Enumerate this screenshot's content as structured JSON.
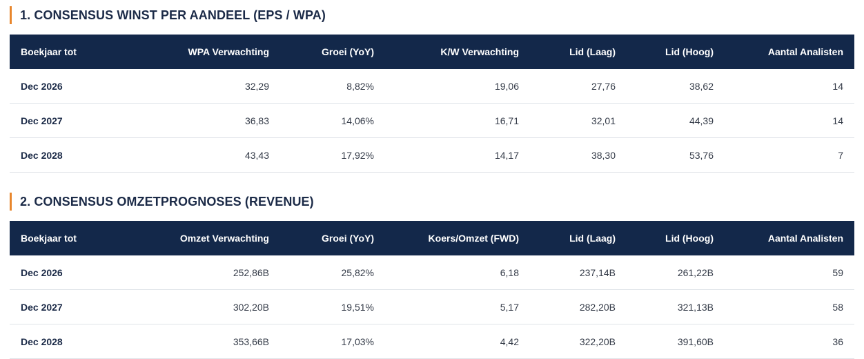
{
  "eps": {
    "title": "1. CONSENSUS WINST PER AANDEEL (EPS / WPA)",
    "headers": [
      "Boekjaar tot",
      "WPA Verwachting",
      "Groei (YoY)",
      "K/W Verwachting",
      "Lid (Laag)",
      "Lid (Hoog)",
      "Aantal Analisten"
    ],
    "rows": [
      [
        "Dec 2026",
        "32,29",
        "8,82%",
        "19,06",
        "27,76",
        "38,62",
        "14"
      ],
      [
        "Dec 2027",
        "36,83",
        "14,06%",
        "16,71",
        "32,01",
        "44,39",
        "14"
      ],
      [
        "Dec 2028",
        "43,43",
        "17,92%",
        "14,17",
        "38,30",
        "53,76",
        "7"
      ]
    ]
  },
  "revenue": {
    "title": "2. CONSENSUS OMZETPROGNOSES (REVENUE)",
    "headers": [
      "Boekjaar tot",
      "Omzet Verwachting",
      "Groei (YoY)",
      "Koers/Omzet (FWD)",
      "Lid (Laag)",
      "Lid (Hoog)",
      "Aantal Analisten"
    ],
    "rows": [
      [
        "Dec 2026",
        "252,86B",
        "25,82%",
        "6,18",
        "237,14B",
        "261,22B",
        "59"
      ],
      [
        "Dec 2027",
        "302,20B",
        "19,51%",
        "5,17",
        "282,20B",
        "321,13B",
        "58"
      ],
      [
        "Dec 2028",
        "353,66B",
        "17,03%",
        "4,42",
        "322,20B",
        "391,60B",
        "36"
      ]
    ]
  },
  "colors": {
    "header_bg": "#13284a",
    "accent_bar": "#e8862c",
    "title_text": "#1b2a47"
  }
}
